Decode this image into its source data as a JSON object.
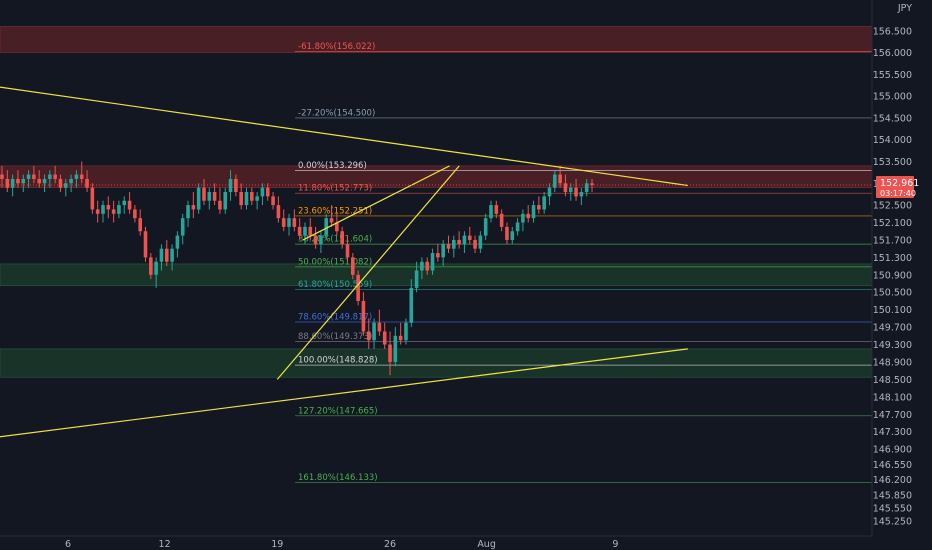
{
  "currency": "JPY",
  "colors": {
    "background": "#131722",
    "up": "#26a69a",
    "down": "#ef5350",
    "trendline": "#f0e442",
    "red_zone": "#5c2328",
    "green_zone": "#1e3d2c",
    "text": "#b2b5be"
  },
  "last_price": {
    "value": "152.961",
    "countdown": "03:17:40"
  },
  "chart_data": {
    "type": "candlestick",
    "y_ticks": [
      "156.500",
      "156.000",
      "155.500",
      "155.000",
      "154.500",
      "154.000",
      "153.500",
      "153.000",
      "152.500",
      "152.100",
      "151.700",
      "151.300",
      "150.900",
      "150.500",
      "150.100",
      "149.700",
      "149.300",
      "148.900",
      "148.500",
      "148.100",
      "147.700",
      "147.300",
      "146.900",
      "146.550",
      "146.200",
      "145.850",
      "145.550",
      "145.250"
    ],
    "x_ticks": [
      {
        "label": "6",
        "day": 6
      },
      {
        "label": "12",
        "day": 12
      },
      {
        "label": "19",
        "day": 19
      },
      {
        "label": "26",
        "day": 26
      },
      {
        "label": "Aug",
        "day": 32
      },
      {
        "label": "9",
        "day": 40
      }
    ],
    "fib_levels": [
      {
        "label": "-61.80%(156.022)",
        "value": 156.022,
        "color": "#ef5350"
      },
      {
        "label": "-27.20%(154.500)",
        "value": 154.5,
        "color": "#8c9fb0"
      },
      {
        "label": "0.00%(153.296)",
        "value": 153.296,
        "color": "#d1d4dc"
      },
      {
        "label": "11.80%(152.773)",
        "value": 152.773,
        "color": "#ef5350"
      },
      {
        "label": "23.60%(152.251)",
        "value": 152.251,
        "color": "#ff9800"
      },
      {
        "label": "38.20%(151.604)",
        "value": 151.604,
        "color": "#4caf50"
      },
      {
        "label": "50.00%(151.082)",
        "value": 151.082,
        "color": "#4caf50"
      },
      {
        "label": "61.80%(150.559)",
        "value": 150.559,
        "color": "#26a69a"
      },
      {
        "label": "78.60%(149.817)",
        "value": 149.817,
        "color": "#3f6fd6"
      },
      {
        "label": "88.60%(149.373)",
        "value": 149.373,
        "color": "#787b86"
      },
      {
        "label": "100.00%(148.828)",
        "value": 148.828,
        "color": "#d1d4dc"
      },
      {
        "label": "127.20%(147.665)",
        "value": 147.665,
        "color": "#4caf50"
      },
      {
        "label": "161.80%(146.133)",
        "value": 146.133,
        "color": "#4caf50"
      }
    ],
    "zones": [
      {
        "kind": "red",
        "from": 156.0,
        "to": 156.6
      },
      {
        "kind": "red",
        "from": 152.9,
        "to": 153.4
      },
      {
        "kind": "green",
        "from": 150.65,
        "to": 151.15
      },
      {
        "kind": "green",
        "from": 148.55,
        "to": 149.2
      }
    ],
    "trendlines": [
      {
        "from": {
          "day": 0.0,
          "price": 155.3
        },
        "to": {
          "day": 44.5,
          "price": 152.95
        }
      },
      {
        "from": {
          "day": 0.0,
          "price": 147.1
        },
        "to": {
          "day": 44.5,
          "price": 149.2
        }
      },
      {
        "from": {
          "day": 19.0,
          "price": 148.5
        },
        "to": {
          "day": 30.3,
          "price": 153.4
        }
      },
      {
        "from": {
          "day": 20.6,
          "price": 151.7
        },
        "to": {
          "day": 29.7,
          "price": 153.4
        }
      }
    ],
    "candles_4h": [
      [
        153.2,
        153.4,
        152.9,
        153.1
      ],
      [
        153.1,
        153.3,
        152.8,
        152.9
      ],
      [
        152.9,
        153.2,
        152.7,
        153.1
      ],
      [
        153.1,
        153.3,
        152.9,
        153.0
      ],
      [
        153.0,
        153.2,
        152.8,
        153.1
      ],
      [
        153.1,
        153.3,
        152.9,
        153.2
      ],
      [
        153.2,
        153.4,
        153.0,
        153.1
      ],
      [
        153.1,
        153.3,
        152.9,
        153.0
      ],
      [
        153.0,
        153.2,
        152.8,
        153.1
      ],
      [
        153.1,
        153.3,
        152.9,
        153.2
      ],
      [
        153.2,
        153.4,
        153.0,
        153.1
      ],
      [
        153.1,
        153.2,
        152.8,
        152.9
      ],
      [
        152.9,
        153.1,
        152.7,
        153.0
      ],
      [
        153.0,
        153.2,
        152.8,
        153.1
      ],
      [
        153.1,
        153.3,
        152.9,
        153.2
      ],
      [
        153.2,
        153.5,
        153.0,
        153.1
      ],
      [
        153.1,
        153.3,
        152.8,
        152.9
      ],
      [
        152.9,
        153.0,
        152.3,
        152.4
      ],
      [
        152.4,
        152.6,
        152.1,
        152.3
      ],
      [
        152.3,
        152.6,
        152.1,
        152.5
      ],
      [
        152.5,
        152.7,
        152.2,
        152.4
      ],
      [
        152.4,
        152.6,
        152.1,
        152.3
      ],
      [
        152.3,
        152.6,
        152.2,
        152.5
      ],
      [
        152.5,
        152.7,
        152.3,
        152.6
      ],
      [
        152.6,
        152.8,
        152.3,
        152.4
      ],
      [
        152.4,
        152.5,
        152.1,
        152.2
      ],
      [
        152.2,
        152.4,
        151.8,
        151.9
      ],
      [
        151.9,
        152.0,
        151.2,
        151.3
      ],
      [
        151.3,
        151.4,
        150.8,
        150.9
      ],
      [
        150.9,
        151.3,
        150.6,
        151.2
      ],
      [
        151.2,
        151.6,
        151.0,
        151.5
      ],
      [
        151.5,
        151.7,
        151.1,
        151.2
      ],
      [
        151.2,
        151.6,
        151.0,
        151.5
      ],
      [
        151.5,
        151.9,
        151.3,
        151.8
      ],
      [
        151.8,
        152.3,
        151.6,
        152.2
      ],
      [
        152.2,
        152.6,
        152.0,
        152.5
      ],
      [
        152.5,
        152.8,
        152.2,
        152.4
      ],
      [
        152.4,
        153.0,
        152.3,
        152.9
      ],
      [
        152.9,
        153.1,
        152.5,
        152.6
      ],
      [
        152.6,
        152.9,
        152.4,
        152.8
      ],
      [
        152.8,
        153.0,
        152.5,
        152.6
      ],
      [
        152.6,
        152.9,
        152.3,
        152.4
      ],
      [
        152.4,
        152.9,
        152.3,
        152.8
      ],
      [
        152.8,
        153.3,
        152.6,
        153.1
      ],
      [
        153.1,
        153.2,
        152.7,
        152.8
      ],
      [
        152.8,
        153.0,
        152.4,
        152.5
      ],
      [
        152.5,
        152.9,
        152.4,
        152.8
      ],
      [
        152.8,
        152.9,
        152.5,
        152.6
      ],
      [
        152.6,
        152.8,
        152.4,
        152.7
      ],
      [
        152.7,
        153.0,
        152.5,
        152.9
      ],
      [
        152.9,
        153.0,
        152.6,
        152.7
      ],
      [
        152.7,
        152.8,
        152.4,
        152.5
      ],
      [
        152.5,
        152.7,
        152.1,
        152.2
      ],
      [
        152.2,
        152.4,
        151.9,
        152.0
      ],
      [
        152.0,
        152.3,
        151.8,
        152.2
      ],
      [
        152.2,
        152.4,
        151.9,
        152.0
      ],
      [
        152.0,
        152.2,
        151.7,
        151.8
      ],
      [
        151.8,
        152.1,
        151.6,
        152.0
      ],
      [
        152.0,
        152.2,
        151.7,
        151.8
      ],
      [
        151.8,
        152.0,
        151.5,
        151.6
      ],
      [
        151.6,
        151.9,
        151.4,
        151.8
      ],
      [
        151.8,
        152.3,
        151.7,
        152.2
      ],
      [
        152.2,
        152.5,
        152.0,
        152.1
      ],
      [
        152.1,
        152.3,
        151.8,
        151.9
      ],
      [
        151.9,
        152.0,
        151.5,
        151.6
      ],
      [
        151.6,
        151.8,
        151.2,
        151.3
      ],
      [
        151.3,
        151.4,
        150.8,
        150.9
      ],
      [
        150.9,
        151.0,
        150.2,
        150.3
      ],
      [
        150.3,
        150.5,
        149.5,
        149.6
      ],
      [
        149.6,
        149.9,
        149.2,
        149.4
      ],
      [
        149.4,
        149.9,
        149.2,
        149.8
      ],
      [
        149.8,
        150.1,
        149.5,
        149.6
      ],
      [
        149.6,
        149.8,
        149.2,
        149.3
      ],
      [
        149.3,
        149.6,
        148.6,
        148.9
      ],
      [
        148.9,
        149.7,
        148.8,
        149.5
      ],
      [
        149.5,
        149.8,
        149.3,
        149.4
      ],
      [
        149.4,
        149.9,
        149.3,
        149.8
      ],
      [
        149.8,
        150.8,
        149.7,
        150.6
      ],
      [
        150.6,
        151.2,
        150.5,
        151.0
      ],
      [
        151.0,
        151.3,
        150.8,
        151.2
      ],
      [
        151.2,
        151.3,
        150.9,
        151.0
      ],
      [
        151.0,
        151.5,
        150.9,
        151.4
      ],
      [
        151.4,
        151.6,
        151.2,
        151.3
      ],
      [
        151.3,
        151.7,
        151.1,
        151.6
      ],
      [
        151.6,
        151.8,
        151.4,
        151.5
      ],
      [
        151.5,
        151.8,
        151.3,
        151.7
      ],
      [
        151.7,
        151.9,
        151.5,
        151.6
      ],
      [
        151.6,
        151.9,
        151.4,
        151.8
      ],
      [
        151.8,
        152.0,
        151.6,
        151.7
      ],
      [
        151.7,
        151.8,
        151.4,
        151.5
      ],
      [
        151.5,
        151.9,
        151.4,
        151.8
      ],
      [
        151.8,
        152.3,
        151.7,
        152.2
      ],
      [
        152.2,
        152.6,
        152.1,
        152.5
      ],
      [
        152.5,
        152.6,
        152.2,
        152.3
      ],
      [
        152.3,
        152.4,
        151.9,
        152.0
      ],
      [
        152.0,
        152.1,
        151.6,
        151.7
      ],
      [
        151.7,
        152.0,
        151.6,
        151.9
      ],
      [
        151.9,
        152.2,
        151.8,
        152.1
      ],
      [
        152.1,
        152.4,
        151.9,
        152.3
      ],
      [
        152.3,
        152.5,
        152.1,
        152.2
      ],
      [
        152.2,
        152.6,
        152.1,
        152.5
      ],
      [
        152.5,
        152.7,
        152.3,
        152.4
      ],
      [
        152.4,
        152.8,
        152.3,
        152.7
      ],
      [
        152.7,
        153.0,
        152.5,
        152.9
      ],
      [
        152.9,
        153.3,
        152.8,
        153.2
      ],
      [
        153.2,
        153.4,
        152.9,
        153.0
      ],
      [
        153.0,
        153.2,
        152.7,
        152.8
      ],
      [
        152.8,
        153.0,
        152.6,
        152.9
      ],
      [
        152.9,
        153.1,
        152.6,
        152.7
      ],
      [
        152.7,
        152.9,
        152.5,
        152.8
      ],
      [
        152.8,
        153.1,
        152.7,
        153.0
      ],
      [
        153.0,
        153.1,
        152.8,
        152.96
      ]
    ]
  }
}
